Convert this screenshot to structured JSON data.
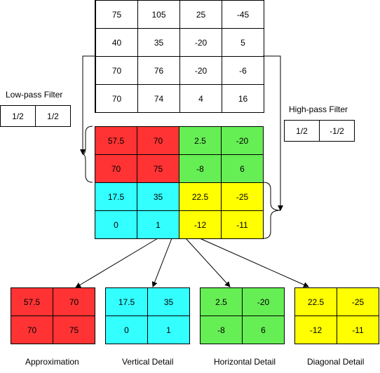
{
  "input_matrix": [
    [
      "75",
      "105",
      "25",
      "-45"
    ],
    [
      "40",
      "35",
      "-20",
      "5"
    ],
    [
      "70",
      "76",
      "-20",
      "-6"
    ],
    [
      "70",
      "74",
      "4",
      "16"
    ]
  ],
  "low_pass": {
    "label": "Low-pass Filter",
    "coeffs": [
      "1/2",
      "1/2"
    ]
  },
  "high_pass": {
    "label": "High-pass Filter",
    "coeffs": [
      "1/2",
      "-1/2"
    ]
  },
  "transformed": [
    [
      "57.5",
      "70",
      "2.5",
      "-20"
    ],
    [
      "70",
      "75",
      "-8",
      "6"
    ],
    [
      "17.5",
      "35",
      "22.5",
      "-25"
    ],
    [
      "0",
      "1",
      "-12",
      "-11"
    ]
  ],
  "subbands": [
    {
      "label": "Approximation",
      "color": "#ff3333",
      "values": [
        "57.5",
        "70",
        "70",
        "75"
      ]
    },
    {
      "label": "Vertical Detail",
      "color": "#33ffff",
      "values": [
        "17.5",
        "35",
        "0",
        "1"
      ]
    },
    {
      "label": "Horizontal Detail",
      "color": "#66ee55",
      "values": [
        "2.5",
        "-20",
        "-8",
        "6"
      ]
    },
    {
      "label": "Diagonal Detail",
      "color": "#ffff00",
      "values": [
        "22.5",
        "-25",
        "-12",
        "-11"
      ]
    }
  ],
  "colors": {
    "red": "#ff3333",
    "green": "#66ee55",
    "cyan": "#33ffff",
    "yellow": "#ffff00"
  }
}
